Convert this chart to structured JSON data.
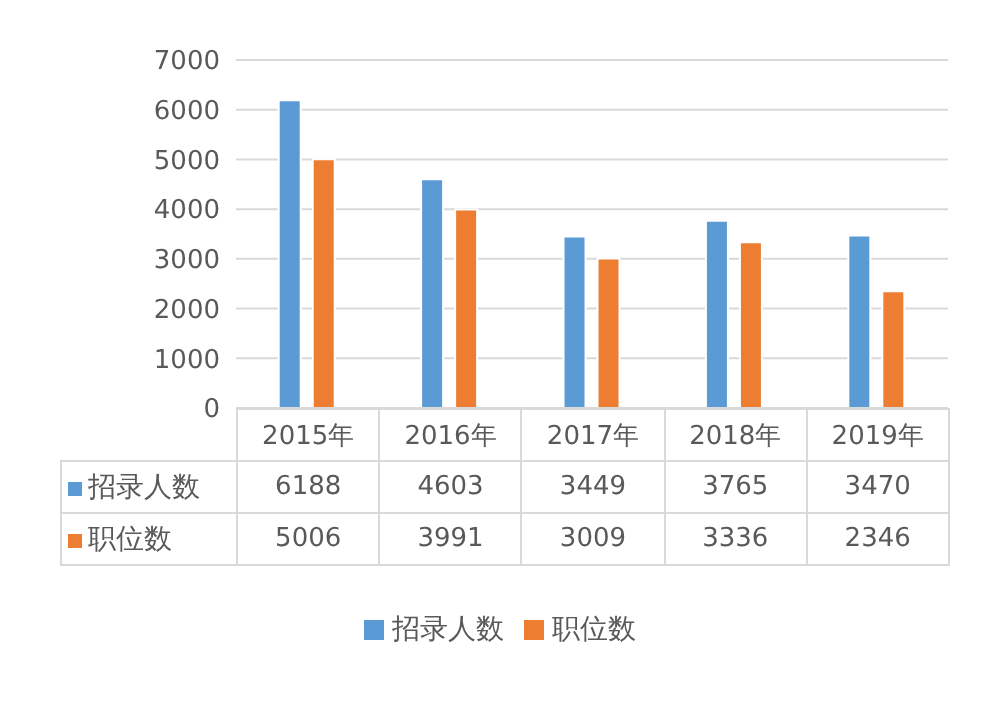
{
  "chart_data": {
    "type": "bar",
    "categories": [
      "2015年",
      "2016年",
      "2017年",
      "2018年",
      "2019年"
    ],
    "series": [
      {
        "name": "招录人数",
        "color": "#5b9bd5",
        "values": [
          6188,
          4603,
          3449,
          3765,
          3470
        ]
      },
      {
        "name": "职位数",
        "color": "#ed7d31",
        "values": [
          5006,
          3991,
          3009,
          3336,
          2346
        ]
      }
    ],
    "ylim": [
      0,
      7000
    ],
    "yticks": [
      0,
      1000,
      2000,
      3000,
      4000,
      5000,
      6000,
      7000
    ],
    "grid": "y",
    "legend": "bottom",
    "data_labels": true
  }
}
